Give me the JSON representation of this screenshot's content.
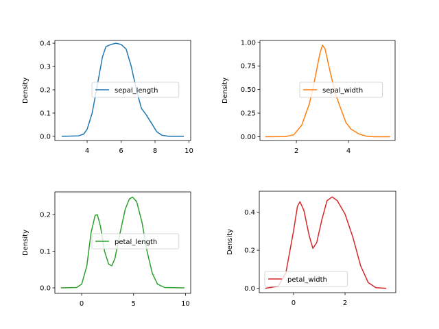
{
  "chart_data": [
    {
      "type": "line",
      "ylabel": "Density",
      "xlabel": "",
      "legend": "center-right",
      "color": "#1f77b4",
      "xlim": [
        2.1,
        10.1
      ],
      "ylim": [
        -0.018,
        0.412
      ],
      "xticks": [
        4,
        6,
        8,
        10
      ],
      "yticks": [
        0.0,
        0.1,
        0.2,
        0.3,
        0.4
      ],
      "ytick_labels": [
        "0.0",
        "0.1",
        "0.2",
        "0.3",
        "0.4"
      ],
      "series": [
        {
          "name": "sepal_length",
          "x": [
            2.5,
            3.5,
            3.8,
            4.0,
            4.3,
            4.6,
            4.9,
            5.1,
            5.4,
            5.7,
            6.0,
            6.3,
            6.6,
            6.9,
            7.2,
            7.5,
            7.8,
            8.1,
            8.4,
            8.8,
            9.7
          ],
          "y": [
            0,
            0.002,
            0.01,
            0.03,
            0.1,
            0.22,
            0.34,
            0.385,
            0.395,
            0.4,
            0.395,
            0.375,
            0.3,
            0.2,
            0.12,
            0.09,
            0.055,
            0.02,
            0.005,
            0,
            0
          ]
        }
      ]
    },
    {
      "type": "line",
      "ylabel": "Density",
      "xlabel": "",
      "legend": "center-right",
      "color": "#ff7f0e",
      "xlim": [
        0.6,
        5.79
      ],
      "ylim": [
        -0.04,
        1.02
      ],
      "xticks": [
        2,
        4
      ],
      "yticks": [
        0,
        0.25,
        0.5,
        0.75,
        1.0
      ],
      "ytick_labels": [
        "0.00",
        "0.25",
        "0.50",
        "0.75",
        "1.00"
      ],
      "series": [
        {
          "name": "sepal_width",
          "x": [
            0.8,
            1.6,
            1.9,
            2.2,
            2.5,
            2.7,
            2.9,
            3.0,
            3.1,
            3.3,
            3.5,
            3.7,
            3.9,
            4.1,
            4.4,
            4.7,
            5.0,
            5.6
          ],
          "y": [
            0,
            0.002,
            0.02,
            0.12,
            0.35,
            0.6,
            0.88,
            0.97,
            0.93,
            0.68,
            0.45,
            0.3,
            0.15,
            0.08,
            0.03,
            0.005,
            0,
            0
          ]
        }
      ]
    },
    {
      "type": "line",
      "ylabel": "Density",
      "xlabel": "",
      "legend": "center",
      "color": "#2ca02c",
      "xlim": [
        -2.58,
        10.5
      ],
      "ylim": [
        -0.015,
        0.262
      ],
      "xticks": [
        0,
        5,
        10
      ],
      "yticks": [
        0.0,
        0.1,
        0.2
      ],
      "ytick_labels": [
        "0.0",
        "0.1",
        "0.2"
      ],
      "series": [
        {
          "name": "petal_length",
          "x": [
            -2,
            -0.5,
            0,
            0.5,
            0.9,
            1.3,
            1.5,
            1.8,
            2.2,
            2.6,
            2.9,
            3.2,
            3.7,
            4.2,
            4.6,
            4.9,
            5.3,
            5.8,
            6.3,
            6.8,
            7.3,
            8,
            9.9
          ],
          "y": [
            0,
            0.001,
            0.01,
            0.06,
            0.15,
            0.198,
            0.2,
            0.17,
            0.1,
            0.065,
            0.06,
            0.08,
            0.15,
            0.215,
            0.243,
            0.248,
            0.235,
            0.18,
            0.1,
            0.04,
            0.01,
            0.001,
            0
          ]
        }
      ]
    },
    {
      "type": "line",
      "ylabel": "Density",
      "xlabel": "",
      "legend": "lower-left",
      "color": "#d62728",
      "xlim": [
        -1.33,
        3.97
      ],
      "ylim": [
        -0.023,
        0.51
      ],
      "xticks": [
        0,
        2
      ],
      "yticks": [
        0.0,
        0.2,
        0.4
      ],
      "ytick_labels": [
        "0.0",
        "0.2",
        "0.4"
      ],
      "series": [
        {
          "name": "petal_width",
          "x": [
            -1.1,
            -0.6,
            -0.3,
            0,
            0.15,
            0.25,
            0.4,
            0.6,
            0.75,
            0.9,
            1.1,
            1.3,
            1.5,
            1.7,
            2.0,
            2.3,
            2.6,
            2.9,
            3.2,
            3.6
          ],
          "y": [
            0,
            0.01,
            0.08,
            0.3,
            0.43,
            0.455,
            0.41,
            0.28,
            0.21,
            0.24,
            0.36,
            0.46,
            0.48,
            0.46,
            0.39,
            0.27,
            0.12,
            0.03,
            0.003,
            0
          ]
        }
      ]
    }
  ]
}
